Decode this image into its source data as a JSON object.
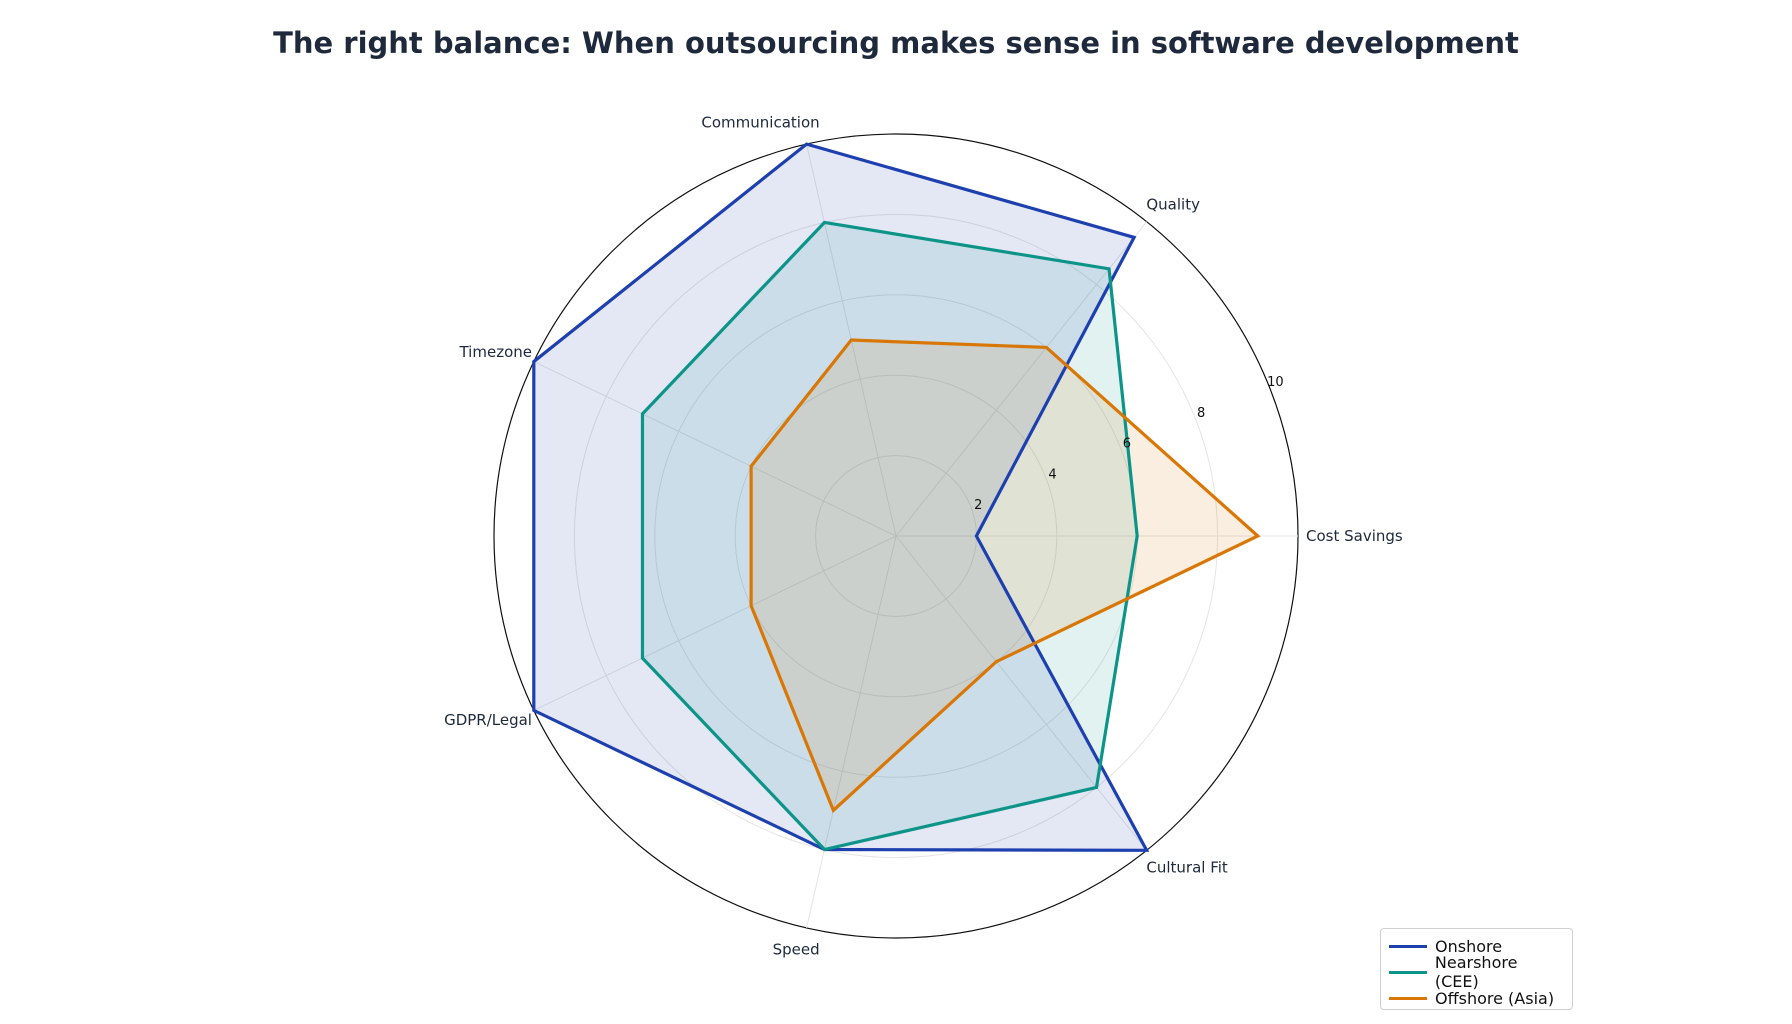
{
  "chart_data": {
    "type": "radar",
    "title": "The right balance: When outsourcing makes sense in software development",
    "axes": [
      "Cost Savings",
      "Quality",
      "Communication",
      "Timezone",
      "GDPR/Legal",
      "Speed",
      "Cultural Fit"
    ],
    "rlim": [
      0,
      10
    ],
    "rticks": [
      "2",
      "4",
      "6",
      "8",
      "10"
    ],
    "grid": true,
    "legend_position": "bottom-right",
    "series": [
      {
        "name": "Onshore",
        "color": "#1e40af",
        "fill_opacity": 0.12,
        "values": [
          2,
          9.5,
          10,
          10,
          10,
          8,
          10
        ]
      },
      {
        "name": "Nearshore (CEE)",
        "color": "#0d9488",
        "fill_opacity": 0.12,
        "values": [
          6,
          8.5,
          8,
          7,
          7,
          8,
          8
        ]
      },
      {
        "name": "Offshore (Asia)",
        "color": "#d97706",
        "fill_opacity": 0.12,
        "values": [
          9,
          6,
          5,
          4,
          4,
          7,
          4
        ]
      }
    ]
  }
}
